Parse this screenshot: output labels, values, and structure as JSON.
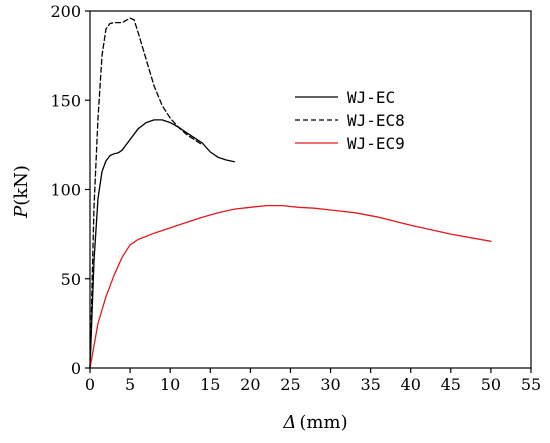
{
  "chart_data": {
    "type": "line",
    "xlabel_symbol": "Δ",
    "xlabel_unit": "(mm)",
    "ylabel_symbol": "P",
    "ylabel_unit": "(kN)",
    "xlim": [
      0,
      55
    ],
    "ylim": [
      0,
      200
    ],
    "x_ticks": [
      "0",
      "5",
      "10",
      "15",
      "20",
      "25",
      "30",
      "35",
      "40",
      "45",
      "50",
      "55"
    ],
    "y_ticks": [
      "0",
      "50",
      "100",
      "150",
      "200"
    ],
    "grid": false,
    "legend_position": "upper-right",
    "series": [
      {
        "name": "WJ-EC",
        "color": "#000000",
        "dash": "solid",
        "points": [
          [
            0,
            0
          ],
          [
            0.5,
            60
          ],
          [
            1,
            95
          ],
          [
            1.5,
            110
          ],
          [
            2,
            116
          ],
          [
            2.5,
            119
          ],
          [
            3,
            120
          ],
          [
            3.5,
            120.5
          ],
          [
            4,
            122
          ],
          [
            5,
            128
          ],
          [
            6,
            134
          ],
          [
            7,
            137.5
          ],
          [
            8,
            139
          ],
          [
            9,
            139
          ],
          [
            10,
            137.5
          ],
          [
            11,
            135
          ],
          [
            12,
            132
          ],
          [
            13,
            129
          ],
          [
            14,
            126
          ],
          [
            15,
            121
          ],
          [
            16,
            118
          ],
          [
            17,
            116.5
          ],
          [
            18,
            115.5
          ]
        ]
      },
      {
        "name": "WJ-EC8",
        "color": "#000000",
        "dash": "dashed",
        "points": [
          [
            0,
            0
          ],
          [
            0.5,
            90
          ],
          [
            1,
            140
          ],
          [
            1.5,
            175
          ],
          [
            2,
            190
          ],
          [
            2.5,
            193
          ],
          [
            3,
            193.5
          ],
          [
            4,
            193.5
          ],
          [
            5,
            196
          ],
          [
            5.5,
            195
          ],
          [
            6,
            188
          ],
          [
            7,
            173
          ],
          [
            8,
            158
          ],
          [
            9,
            147
          ],
          [
            10,
            140
          ],
          [
            11,
            135
          ],
          [
            12,
            131
          ],
          [
            13,
            128
          ],
          [
            14,
            125
          ]
        ]
      },
      {
        "name": "WJ-EC9",
        "color": "#e41a1c",
        "dash": "solid",
        "points": [
          [
            0,
            0
          ],
          [
            1,
            25
          ],
          [
            2,
            40
          ],
          [
            3,
            52
          ],
          [
            4,
            62
          ],
          [
            5,
            69
          ],
          [
            6,
            72
          ],
          [
            8,
            75.5
          ],
          [
            10,
            78.5
          ],
          [
            12,
            81.5
          ],
          [
            14,
            84.5
          ],
          [
            16,
            87
          ],
          [
            18,
            89
          ],
          [
            20,
            90
          ],
          [
            22,
            91
          ],
          [
            24,
            91
          ],
          [
            26,
            90
          ],
          [
            28,
            89.5
          ],
          [
            30,
            88.5
          ],
          [
            33,
            87
          ],
          [
            36,
            84.5
          ],
          [
            40,
            80
          ],
          [
            45,
            75
          ],
          [
            50,
            71
          ]
        ]
      }
    ]
  }
}
